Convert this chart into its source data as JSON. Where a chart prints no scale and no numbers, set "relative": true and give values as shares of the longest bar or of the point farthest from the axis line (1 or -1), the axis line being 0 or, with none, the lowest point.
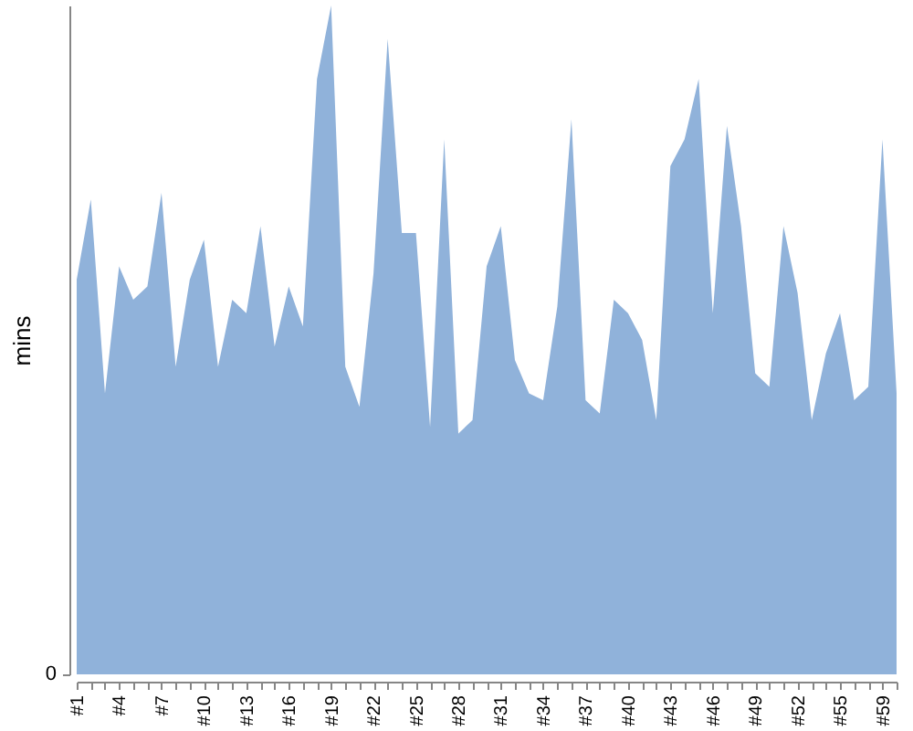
{
  "chart_data": {
    "type": "area",
    "ylabel": "mins",
    "relative": true,
    "color": "#90b2da",
    "annotations": [
      "0"
    ],
    "categories": [
      "#1",
      null,
      null,
      "#4",
      null,
      null,
      "#7",
      null,
      null,
      "#10",
      null,
      null,
      "#13",
      null,
      null,
      "#16",
      null,
      null,
      "#19",
      null,
      null,
      "#22",
      null,
      null,
      "#25",
      null,
      null,
      "#28",
      null,
      null,
      "#31",
      null,
      null,
      "#34",
      null,
      null,
      "#37",
      null,
      null,
      "#40",
      null,
      null,
      "#43",
      null,
      null,
      "#46",
      null,
      null,
      "#49",
      null,
      null,
      "#52",
      null,
      null,
      "#55",
      null,
      null,
      "#59",
      null
    ],
    "values": [
      0.59,
      0.71,
      0.42,
      0.61,
      0.56,
      0.58,
      0.72,
      0.46,
      0.59,
      0.65,
      0.46,
      0.56,
      0.54,
      0.67,
      0.49,
      0.58,
      0.52,
      0.89,
      1,
      0.46,
      0.4,
      0.6,
      0.95,
      0.66,
      0.66,
      0.37,
      0.8,
      0.36,
      0.38,
      0.61,
      0.67,
      0.47,
      0.42,
      0.41,
      0.55,
      0.83,
      0.41,
      0.39,
      0.56,
      0.54,
      0.5,
      0.38,
      0.76,
      0.8,
      0.89,
      0.54,
      0.82,
      0.67,
      0.45,
      0.43,
      0.67,
      0.57,
      0.38,
      0.48,
      0.54,
      0.41,
      0.43,
      0.8,
      0.42
    ]
  }
}
